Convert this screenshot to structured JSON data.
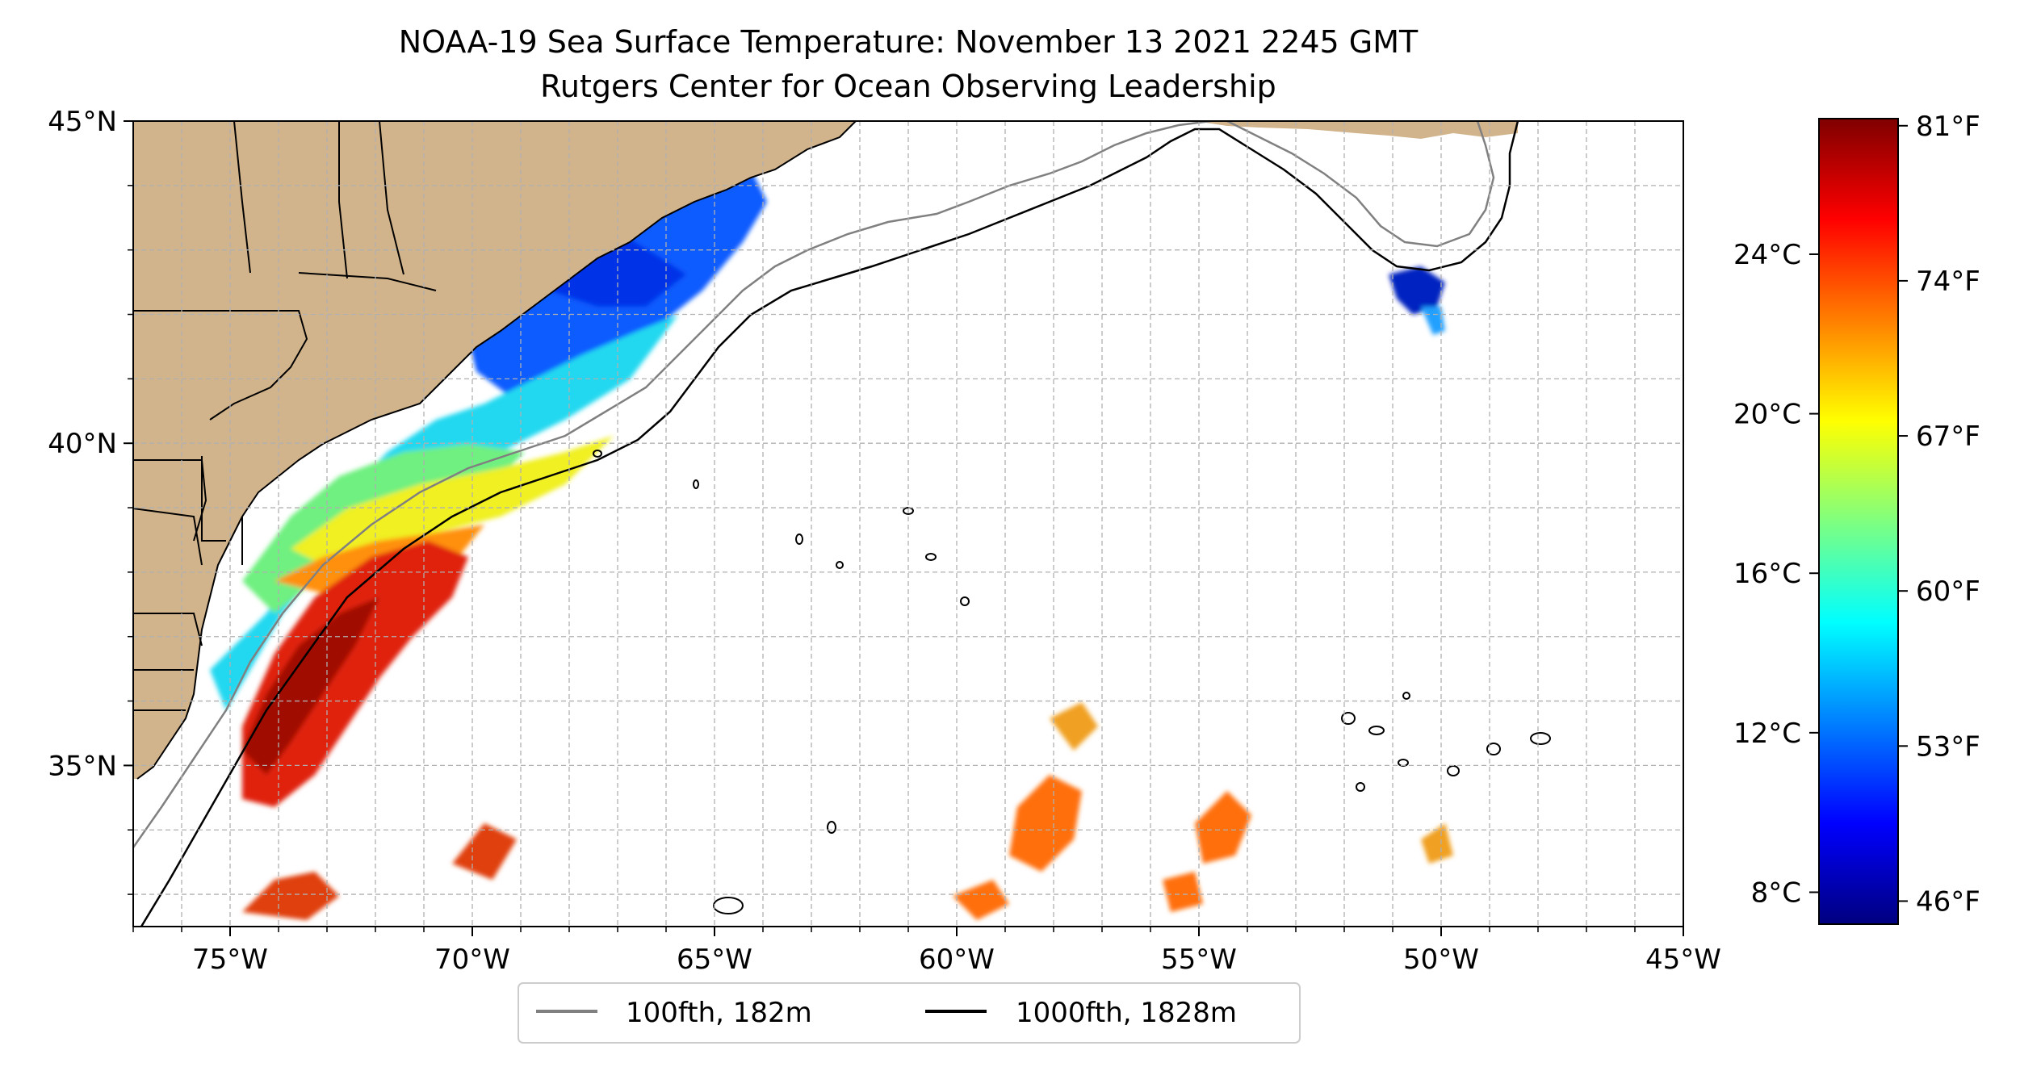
{
  "title": {
    "line1": "NOAA-19 Sea Surface Temperature: November 13 2021 2245 GMT",
    "line2": "Rutgers Center for Ocean Observing Leadership"
  },
  "map": {
    "lon_range": [
      -77,
      -45
    ],
    "lat_range": [
      32.5,
      45
    ],
    "x_ticks": [
      {
        "lon": -75,
        "label": "75°W"
      },
      {
        "lon": -70,
        "label": "70°W"
      },
      {
        "lon": -65,
        "label": "65°W"
      },
      {
        "lon": -60,
        "label": "60°W"
      },
      {
        "lon": -55,
        "label": "55°W"
      },
      {
        "lon": -50,
        "label": "50°W"
      },
      {
        "lon": -45,
        "label": "45°W"
      }
    ],
    "y_ticks": [
      {
        "lat": 45,
        "label": "45°N"
      },
      {
        "lat": 40,
        "label": "40°N"
      },
      {
        "lat": 35,
        "label": "35°N"
      }
    ],
    "grid": true,
    "grid_spacing_deg": 1,
    "land_color": "#d2b48c",
    "sst_palette_colors": [
      "#00007f",
      "#0000ff",
      "#007fff",
      "#00ffff",
      "#7fff7f",
      "#ffff00",
      "#ff7f00",
      "#ff0000",
      "#7f0000"
    ]
  },
  "legend": {
    "placement": "bottom-center",
    "items": [
      {
        "label": "100fth, 182m",
        "color": "#808080"
      },
      {
        "label": "1000fth, 1828m",
        "color": "#000000"
      }
    ]
  },
  "colorbar": {
    "celsius_range": [
      7.2,
      27.4
    ],
    "celsius_ticks": [
      {
        "value": 8,
        "label": "8°C"
      },
      {
        "value": 12,
        "label": "12°C"
      },
      {
        "value": 16,
        "label": "16°C"
      },
      {
        "value": 20,
        "label": "20°C"
      },
      {
        "value": 24,
        "label": "24°C"
      }
    ],
    "fahrenheit_ticks": [
      {
        "value": 46,
        "label": "46°F"
      },
      {
        "value": 53,
        "label": "53°F"
      },
      {
        "value": 60,
        "label": "60°F"
      },
      {
        "value": 67,
        "label": "67°F"
      },
      {
        "value": 74,
        "label": "74°F"
      },
      {
        "value": 81,
        "label": "81°F"
      }
    ],
    "colors": [
      "#00007f",
      "#0000ff",
      "#007fff",
      "#00ffff",
      "#7fff7f",
      "#ffff00",
      "#ff7f00",
      "#ff0000",
      "#7f0000"
    ]
  }
}
